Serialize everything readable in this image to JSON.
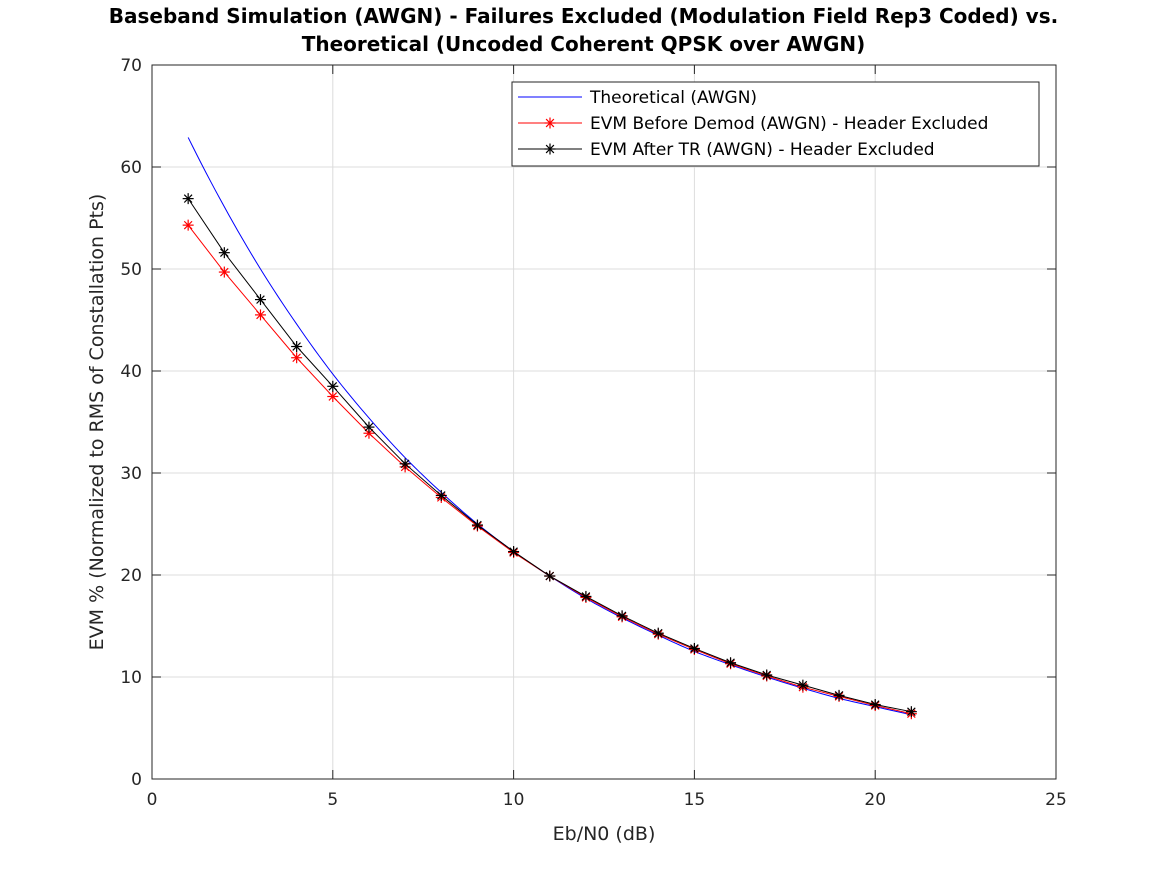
{
  "chart_data": {
    "type": "line",
    "title_line1": "Baseband Simulation (AWGN) - Failures Excluded (Modulation Field Rep3 Coded) vs.",
    "title_line2": "Theoretical (Uncoded Coherent QPSK over AWGN)",
    "xlabel": "Eb/N0 (dB)",
    "ylabel": "EVM % (Normalized to RMS of Constallation Pts)",
    "xlim": [
      0,
      25
    ],
    "ylim": [
      0,
      70
    ],
    "xticks": [
      0,
      5,
      10,
      15,
      20,
      25
    ],
    "yticks": [
      0,
      10,
      20,
      30,
      40,
      50,
      60,
      70
    ],
    "grid": true,
    "legend_position": "top-right",
    "series": [
      {
        "name": "Theoretical (AWGN)",
        "color": "#0000ff",
        "marker": "none",
        "x": [
          1,
          2,
          3,
          4,
          5,
          6,
          7,
          8,
          9,
          10,
          11,
          12,
          13,
          14,
          15,
          16,
          17,
          18,
          19,
          20,
          21
        ],
        "values": [
          62.9,
          56.1,
          50.0,
          44.6,
          39.7,
          35.4,
          31.5,
          28.1,
          25.0,
          22.3,
          19.9,
          17.7,
          15.8,
          14.1,
          12.5,
          11.2,
          10.0,
          8.9,
          7.9,
          7.1,
          6.3
        ]
      },
      {
        "name": "EVM Before Demod (AWGN) - Header Excluded",
        "color": "#ff0000",
        "marker": "asterisk",
        "x": [
          1,
          2,
          3,
          4,
          5,
          6,
          7,
          8,
          9,
          10,
          11,
          12,
          13,
          14,
          15,
          16,
          17,
          18,
          19,
          20,
          21
        ],
        "values": [
          54.3,
          49.7,
          45.5,
          41.3,
          37.5,
          33.9,
          30.6,
          27.6,
          24.8,
          22.2,
          19.9,
          17.8,
          15.9,
          14.2,
          12.7,
          11.3,
          10.1,
          9.0,
          8.1,
          7.2,
          6.4
        ]
      },
      {
        "name": "EVM After TR (AWGN) - Header Excluded",
        "color": "#000000",
        "marker": "asterisk",
        "x": [
          1,
          2,
          3,
          4,
          5,
          6,
          7,
          8,
          9,
          10,
          11,
          12,
          13,
          14,
          15,
          16,
          17,
          18,
          19,
          20,
          21
        ],
        "values": [
          56.9,
          51.6,
          47.0,
          42.4,
          38.5,
          34.5,
          30.9,
          27.8,
          24.9,
          22.3,
          19.9,
          17.9,
          16.0,
          14.3,
          12.8,
          11.4,
          10.2,
          9.2,
          8.2,
          7.3,
          6.6
        ]
      }
    ]
  }
}
